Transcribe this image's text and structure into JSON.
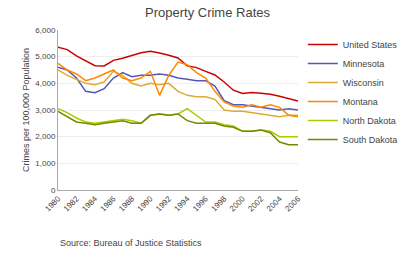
{
  "chart_data": {
    "type": "line",
    "title": "Property Crime Rates",
    "ylabel": "Crimes per 100,000 Population",
    "annotations": [
      "Source: Bureau of Justice Statistics"
    ],
    "x": [
      1980,
      1981,
      1982,
      1983,
      1984,
      1985,
      1986,
      1987,
      1988,
      1989,
      1990,
      1991,
      1992,
      1993,
      1994,
      1995,
      1996,
      1997,
      1998,
      1999,
      2000,
      2001,
      2002,
      2003,
      2004,
      2005,
      2006
    ],
    "series": [
      {
        "name": "United States",
        "color": "#cc0000",
        "values": [
          5350,
          5264,
          5032,
          4850,
          4660,
          4650,
          4862,
          4940,
          5050,
          5150,
          5200,
          5140,
          5050,
          4950,
          4660,
          4590,
          4450,
          4312,
          4050,
          3743,
          3618,
          3658,
          3630,
          3588,
          3517,
          3432,
          3334
        ]
      },
      {
        "name": "Minnesota",
        "color": "#5555bb",
        "values": [
          4600,
          4500,
          4200,
          3700,
          3650,
          3800,
          4200,
          4400,
          4250,
          4300,
          4300,
          4350,
          4300,
          4200,
          4150,
          4100,
          4100,
          3900,
          3350,
          3200,
          3200,
          3150,
          3100,
          3050,
          3000,
          3050,
          3000
        ]
      },
      {
        "name": "Wisconsin",
        "color": "#ddaa33",
        "values": [
          4500,
          4300,
          4150,
          4000,
          3950,
          4050,
          4450,
          4300,
          4000,
          3900,
          4000,
          3950,
          4000,
          3700,
          3550,
          3500,
          3500,
          3400,
          3000,
          2950,
          2950,
          2900,
          2850,
          2800,
          2750,
          2800,
          2800
        ]
      },
      {
        "name": "Montana",
        "color": "#ff8800",
        "values": [
          4750,
          4500,
          4350,
          4100,
          4200,
          4350,
          4500,
          4200,
          4100,
          4200,
          4450,
          3550,
          4300,
          4800,
          4700,
          4400,
          4200,
          3700,
          3300,
          3150,
          3100,
          3200,
          3100,
          3200,
          3100,
          2800,
          2750
        ]
      },
      {
        "name": "North Dakota",
        "color": "#aacc00",
        "values": [
          3050,
          2900,
          2700,
          2550,
          2500,
          2550,
          2600,
          2650,
          2600,
          2500,
          2800,
          2850,
          2800,
          2850,
          3050,
          2800,
          2550,
          2550,
          2450,
          2400,
          2200,
          2200,
          2250,
          2200,
          2000,
          2000,
          2000
        ]
      },
      {
        "name": "South Dakota",
        "color": "#778800",
        "values": [
          2950,
          2750,
          2550,
          2500,
          2450,
          2500,
          2550,
          2600,
          2500,
          2500,
          2800,
          2850,
          2800,
          2850,
          2600,
          2500,
          2500,
          2500,
          2400,
          2350,
          2200,
          2200,
          2250,
          2150,
          1800,
          1700,
          1700
        ]
      }
    ],
    "xlim": [
      1980,
      2006
    ],
    "xticks": [
      1980,
      1982,
      1984,
      1986,
      1988,
      1990,
      1992,
      1994,
      1996,
      1998,
      2000,
      2002,
      2004,
      2006
    ],
    "ylim": [
      0,
      6000
    ],
    "yticks": [
      0,
      {
        "value": 1000,
        "label": "1,000"
      },
      {
        "value": 2000,
        "label": "2,000"
      },
      {
        "value": 3000,
        "label": "3,000"
      },
      {
        "value": 4000,
        "label": "4,000"
      },
      {
        "value": 5000,
        "label": "5,000"
      },
      {
        "value": 6000,
        "label": "6,000"
      }
    ],
    "grid": "y",
    "legend": "right"
  }
}
